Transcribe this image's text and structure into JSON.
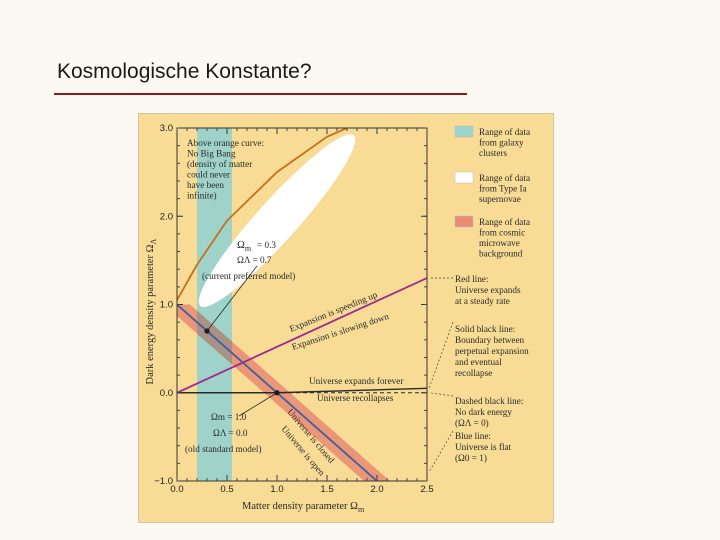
{
  "slide": {
    "title": "Kosmologische Konstante?"
  },
  "colors": {
    "background": "#f8dc96",
    "galaxy_clusters": "#9fd3c9",
    "supernovae": "#ffffff",
    "cmb": "#e98b72",
    "red_line": "#9c2a8c",
    "orange_curve": "#c86f1c",
    "blue_line": "#3d5ea0",
    "solid_black": "#2a2a2a"
  },
  "chart_data": {
    "type": "area",
    "xlabel": "Matter density parameter Ω",
    "xlabel_sub": "m",
    "ylabel": "Dark energy density parameter Ω",
    "ylabel_sub": "Λ",
    "xlim": [
      0.0,
      2.5
    ],
    "ylim": [
      -1.0,
      3.0
    ],
    "x_ticks": [
      "0.0",
      "0.5",
      "1.0",
      "1.5",
      "2.0",
      "2.5"
    ],
    "y_ticks": [
      "−1.0",
      "0.0",
      "1.0",
      "2.0",
      "3.0"
    ],
    "regions": [
      {
        "name": "galaxy_clusters",
        "x_range": [
          0.2,
          0.55
        ]
      },
      {
        "name": "supernovae",
        "ellipse": {
          "center": [
            1.0,
            1.95
          ],
          "rx": 0.85,
          "ry": 0.42,
          "angle_deg": 48
        }
      },
      {
        "name": "cmb",
        "band": {
          "line": [
            [
              0.0,
              1.0
            ],
            [
              2.0,
              -1.0
            ]
          ],
          "half_width_omega": 0.13
        }
      }
    ],
    "series": [
      {
        "name": "Red line",
        "style": "solid",
        "points": [
          [
            0.0,
            0.0
          ],
          [
            2.5,
            1.3
          ]
        ]
      },
      {
        "name": "Solid black line",
        "style": "solid",
        "points": [
          [
            0.0,
            0.0
          ],
          [
            1.0,
            0.0
          ],
          [
            2.5,
            0.05
          ]
        ]
      },
      {
        "name": "Blue line",
        "style": "solid",
        "points": [
          [
            0.0,
            1.0
          ],
          [
            2.0,
            -1.0
          ]
        ]
      },
      {
        "name": "Dashed black line",
        "style": "dashed",
        "points": [
          [
            0.0,
            0.0
          ],
          [
            2.5,
            0.0
          ]
        ]
      },
      {
        "name": "Orange curve",
        "style": "solid",
        "points": [
          [
            0.0,
            1.05
          ],
          [
            0.2,
            1.45
          ],
          [
            0.5,
            1.95
          ],
          [
            1.0,
            2.5
          ],
          [
            1.5,
            2.9
          ],
          [
            1.7,
            3.0
          ]
        ]
      }
    ],
    "points": [
      {
        "x": 0.3,
        "y": 0.7,
        "label": "current preferred model"
      },
      {
        "x": 1.0,
        "y": 0.0,
        "label": "old standard model"
      }
    ],
    "annotations": {
      "above_orange": [
        "Above orange curve:",
        "No Big Bang",
        "(density of matter",
        "could never",
        "have been",
        "infinite)"
      ],
      "current_model": [
        "Ωm = 0.3",
        "ΩΛ = 0.7",
        "(current preferred model)"
      ],
      "speeding_up": "Expansion is speeding up",
      "slowing_down": "Expansion is slowing down",
      "expands_forever": "Universe expands forever",
      "recollapses": "Universe recollapses",
      "is_closed": "Universe is closed",
      "is_open": "Universe is open",
      "old_model": [
        "Ωm = 1.0",
        "ΩΛ = 0.0",
        "(old standard model)"
      ]
    },
    "legend_placement": "right",
    "legend": [
      {
        "swatch": "galaxy_clusters",
        "lines": [
          "Range of data",
          "from galaxy",
          "clusters"
        ]
      },
      {
        "swatch": "supernovae",
        "lines": [
          "Range of data",
          "from Type Ia",
          "supernovae"
        ]
      },
      {
        "swatch": "cmb",
        "lines": [
          "Range of data",
          "from cosmic",
          "microwave",
          "background"
        ]
      }
    ],
    "line_notes": [
      {
        "lines": [
          "Red line:",
          "Universe expands",
          "at a steady rate"
        ]
      },
      {
        "lines": [
          "Solid black line:",
          "Boundary between",
          "perpetual expansion",
          "and eventual",
          "recollapse"
        ]
      },
      {
        "lines": [
          "Dashed black line:",
          "No dark energy",
          "(ΩΛ = 0)"
        ]
      },
      {
        "lines": [
          "Blue line:",
          "Universe is flat",
          "(Ω0 = 1)"
        ]
      }
    ]
  }
}
